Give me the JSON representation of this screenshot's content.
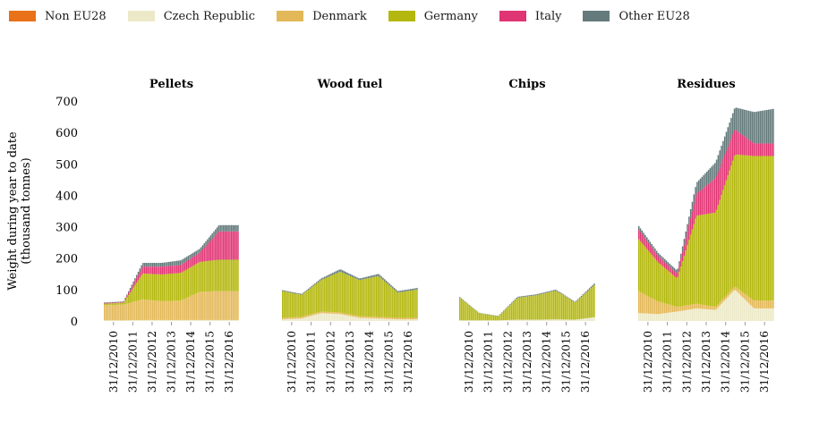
{
  "legend": [
    {
      "label": "Non EU28",
      "color": "#e8711a"
    },
    {
      "label": "Czech Republic",
      "color": "#ece9c8"
    },
    {
      "label": "Denmark",
      "color": "#e3b858"
    },
    {
      "label": "Germany",
      "color": "#b4b80e"
    },
    {
      "label": "Italy",
      "color": "#e03574"
    },
    {
      "label": "Other EU28",
      "color": "#647a7b"
    }
  ],
  "chart_data": {
    "type": "area",
    "style": "stacked monthly bars, small multiples",
    "ylabel": "Weight during year to date (thousand tonnes)",
    "ylim": [
      0,
      700
    ],
    "yticks": [
      0,
      100,
      200,
      300,
      400,
      500,
      600,
      700
    ],
    "xticks": [
      "31/12/2010",
      "31/12/2011",
      "31/12/2012",
      "31/12/2013",
      "31/12/2014",
      "31/12/2015",
      "31/12/2016"
    ],
    "x_dates": [
      "31/12/2010",
      "31/12/2011",
      "31/12/2012",
      "31/12/2013",
      "31/12/2014",
      "31/12/2015",
      "31/12/2016",
      "31/12/2017"
    ],
    "series_order": [
      "Non EU28",
      "Czech Republic",
      "Denmark",
      "Germany",
      "Italy",
      "Other EU28"
    ],
    "panels": [
      {
        "title": "Pellets",
        "values": [
          {
            "Non EU28": 0,
            "Czech Republic": 2,
            "Denmark": 48,
            "Germany": 5,
            "Italy": 2,
            "Other EU28": 2
          },
          {
            "Non EU28": 0,
            "Czech Republic": 2,
            "Denmark": 50,
            "Germany": 6,
            "Italy": 2,
            "Other EU28": 2
          },
          {
            "Non EU28": 0,
            "Czech Republic": 3,
            "Denmark": 66,
            "Germany": 82,
            "Italy": 22,
            "Other EU28": 12
          },
          {
            "Non EU28": 0,
            "Czech Republic": 3,
            "Denmark": 60,
            "Germany": 85,
            "Italy": 25,
            "Other EU28": 12
          },
          {
            "Non EU28": 0,
            "Czech Republic": 3,
            "Denmark": 62,
            "Germany": 88,
            "Italy": 25,
            "Other EU28": 15
          },
          {
            "Non EU28": 0,
            "Czech Republic": 3,
            "Denmark": 90,
            "Germany": 95,
            "Italy": 30,
            "Other EU28": 12
          },
          {
            "Non EU28": 0,
            "Czech Republic": 3,
            "Denmark": 92,
            "Germany": 100,
            "Italy": 90,
            "Other EU28": 20
          },
          {
            "Non EU28": 0,
            "Czech Republic": 3,
            "Denmark": 92,
            "Germany": 100,
            "Italy": 90,
            "Other EU28": 20
          }
        ]
      },
      {
        "title": "Wood fuel",
        "values": [
          {
            "Non EU28": 0,
            "Czech Republic": 5,
            "Denmark": 5,
            "Germany": 85,
            "Italy": 0,
            "Other EU28": 3
          },
          {
            "Non EU28": 0,
            "Czech Republic": 8,
            "Denmark": 5,
            "Germany": 70,
            "Italy": 0,
            "Other EU28": 3
          },
          {
            "Non EU28": 0,
            "Czech Republic": 25,
            "Denmark": 5,
            "Germany": 100,
            "Italy": 0,
            "Other EU28": 5
          },
          {
            "Non EU28": 0,
            "Czech Republic": 22,
            "Denmark": 5,
            "Germany": 130,
            "Italy": 0,
            "Other EU28": 8
          },
          {
            "Non EU28": 0,
            "Czech Republic": 10,
            "Denmark": 5,
            "Germany": 115,
            "Italy": 0,
            "Other EU28": 5
          },
          {
            "Non EU28": 0,
            "Czech Republic": 8,
            "Denmark": 5,
            "Germany": 130,
            "Italy": 0,
            "Other EU28": 7
          },
          {
            "Non EU28": 0,
            "Czech Republic": 5,
            "Denmark": 5,
            "Germany": 80,
            "Italy": 0,
            "Other EU28": 5
          },
          {
            "Non EU28": 0,
            "Czech Republic": 5,
            "Denmark": 5,
            "Germany": 90,
            "Italy": 0,
            "Other EU28": 5
          }
        ]
      },
      {
        "title": "Chips",
        "values": [
          {
            "Non EU28": 0,
            "Czech Republic": 2,
            "Denmark": 0,
            "Germany": 72,
            "Italy": 0,
            "Other EU28": 2
          },
          {
            "Non EU28": 0,
            "Czech Republic": 2,
            "Denmark": 0,
            "Germany": 23,
            "Italy": 0,
            "Other EU28": 1
          },
          {
            "Non EU28": 0,
            "Czech Republic": 2,
            "Denmark": 0,
            "Germany": 13,
            "Italy": 0,
            "Other EU28": 1
          },
          {
            "Non EU28": 0,
            "Czech Republic": 4,
            "Denmark": 0,
            "Germany": 70,
            "Italy": 0,
            "Other EU28": 3
          },
          {
            "Non EU28": 0,
            "Czech Republic": 4,
            "Denmark": 0,
            "Germany": 78,
            "Italy": 0,
            "Other EU28": 3
          },
          {
            "Non EU28": 0,
            "Czech Republic": 5,
            "Denmark": 0,
            "Germany": 92,
            "Italy": 0,
            "Other EU28": 3
          },
          {
            "Non EU28": 0,
            "Czech Republic": 4,
            "Denmark": 0,
            "Germany": 55,
            "Italy": 0,
            "Other EU28": 2
          },
          {
            "Non EU28": 0,
            "Czech Republic": 12,
            "Denmark": 0,
            "Germany": 102,
            "Italy": 0,
            "Other EU28": 5
          }
        ]
      },
      {
        "title": "Residues",
        "values": [
          {
            "Non EU28": 0,
            "Czech Republic": 25,
            "Denmark": 70,
            "Germany": 165,
            "Italy": 30,
            "Other EU28": 12
          },
          {
            "Non EU28": 0,
            "Czech Republic": 22,
            "Denmark": 40,
            "Germany": 125,
            "Italy": 20,
            "Other EU28": 10
          },
          {
            "Non EU28": 0,
            "Czech Republic": 30,
            "Denmark": 15,
            "Germany": 90,
            "Italy": 15,
            "Other EU28": 10
          },
          {
            "Non EU28": 0,
            "Czech Republic": 40,
            "Denmark": 15,
            "Germany": 280,
            "Italy": 70,
            "Other EU28": 35
          },
          {
            "Non EU28": 0,
            "Czech Republic": 35,
            "Denmark": 10,
            "Germany": 300,
            "Italy": 110,
            "Other EU28": 50
          },
          {
            "Non EU28": 0,
            "Czech Republic": 100,
            "Denmark": 10,
            "Germany": 420,
            "Italy": 80,
            "Other EU28": 70
          },
          {
            "Non EU28": 0,
            "Czech Republic": 40,
            "Denmark": 25,
            "Germany": 460,
            "Italy": 40,
            "Other EU28": 100
          },
          {
            "Non EU28": 0,
            "Czech Republic": 40,
            "Denmark": 25,
            "Germany": 460,
            "Italy": 40,
            "Other EU28": 110
          }
        ]
      }
    ]
  }
}
